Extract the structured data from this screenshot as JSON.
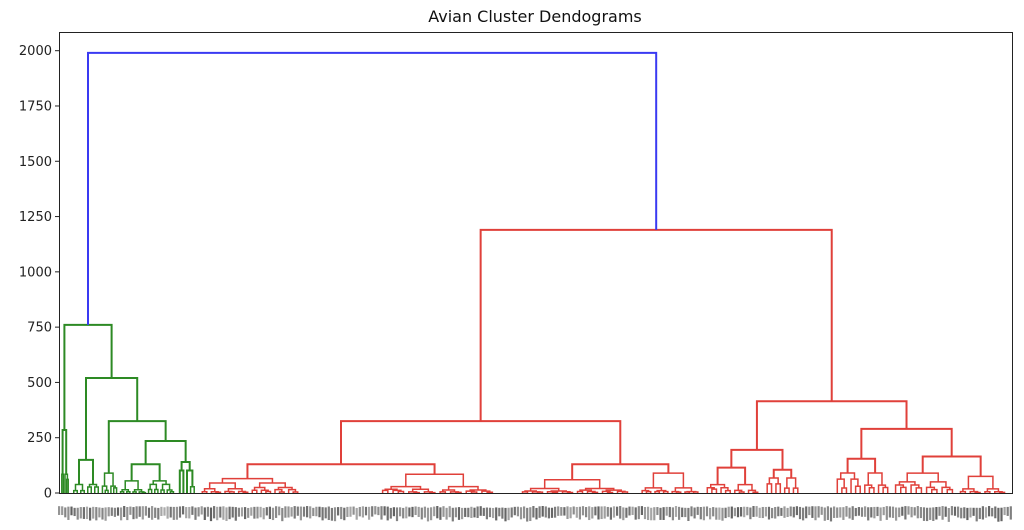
{
  "chart_data": {
    "type": "dendrogram",
    "title": "Avian Cluster Dendograms",
    "xlabel": "",
    "ylabel": "",
    "ylim": [
      0,
      2080
    ],
    "yticks": [
      0,
      250,
      500,
      750,
      1000,
      1250,
      1500,
      1750,
      2000
    ],
    "grid": false,
    "colors": {
      "root": "#3a3af2",
      "cluster_green": "#2d8a24",
      "cluster_red": "#e0403a"
    },
    "merges": [
      {
        "id": "root",
        "height": 1990,
        "cluster": "root"
      },
      {
        "id": "green_root",
        "height": 760,
        "cluster": "cluster_green"
      },
      {
        "id": "red_root",
        "height": 1190,
        "cluster": "cluster_red"
      },
      {
        "id": "green_a",
        "height": 520,
        "cluster": "cluster_green"
      },
      {
        "id": "green_b",
        "height": 325,
        "cluster": "cluster_green"
      },
      {
        "id": "green_c",
        "height": 235,
        "cluster": "cluster_green"
      },
      {
        "id": "red_left",
        "height": 325,
        "cluster": "cluster_red"
      },
      {
        "id": "red_right",
        "height": 415,
        "cluster": "cluster_red"
      },
      {
        "id": "red_right_a",
        "height": 195,
        "cluster": "cluster_red"
      },
      {
        "id": "red_right_b",
        "height": 290,
        "cluster": "cluster_red"
      },
      {
        "id": "red_left_a",
        "height": 130,
        "cluster": "cluster_red"
      },
      {
        "id": "red_left_b",
        "height": 130,
        "cluster": "cluster_red"
      }
    ]
  }
}
